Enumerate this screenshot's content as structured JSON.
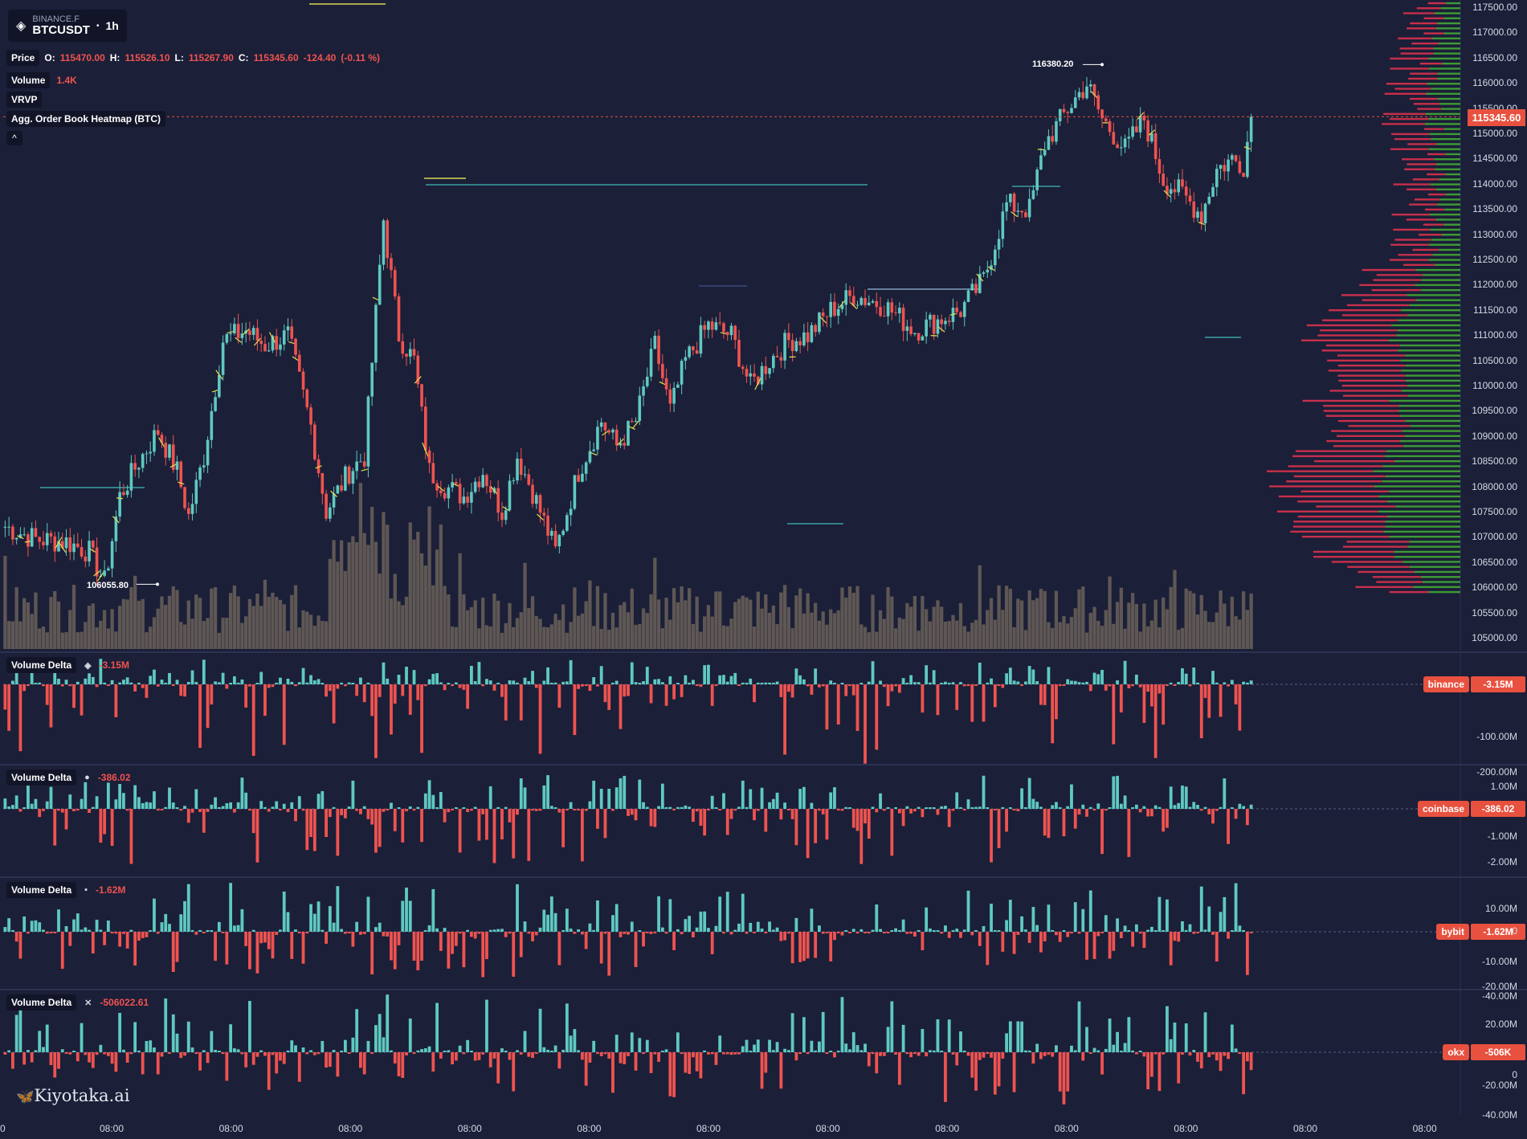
{
  "header": {
    "exchange": "BINANCE.F",
    "symbol": "BTCUSDT",
    "separator": "•",
    "timeframe": "1h"
  },
  "legend": {
    "price_label": "Price",
    "o_label": "O:",
    "o": "115470.00",
    "h_label": "H:",
    "h": "115526.10",
    "l_label": "L:",
    "l": "115267.90",
    "c_label": "C:",
    "c": "115345.60",
    "chg": "-124.40",
    "chg_pct": "(-0.11 %)",
    "volume_label": "Volume",
    "volume": "1.4K",
    "vrvp_label": "VRVP",
    "heatmap_label": "Agg. Order Book Heatmap (BTC)",
    "collapse": "^"
  },
  "price_axis": [
    "117500.00",
    "117000.00",
    "116500.00",
    "116000.00",
    "115500.00",
    "115000.00",
    "114500.00",
    "114000.00",
    "113500.00",
    "113000.00",
    "112500.00",
    "112000.00",
    "111500.00",
    "111000.00",
    "110500.00",
    "110000.00",
    "109500.00",
    "109000.00",
    "108500.00",
    "108000.00",
    "107500.00",
    "107000.00",
    "106500.00",
    "106000.00",
    "105500.00",
    "105000.00"
  ],
  "current_price": "115345.60",
  "markers": {
    "high": "116380.20",
    "low": "106055.80"
  },
  "panes": [
    {
      "title": "Volume Delta",
      "icon": "◈",
      "value": "-3.15M",
      "exchange": "binance",
      "badge": "-3.15M",
      "ticks": [
        "-100.00M",
        "-200.00M"
      ]
    },
    {
      "title": "Volume Delta",
      "icon": "●",
      "value": "-386.02",
      "exchange": "coinbase",
      "badge": "-386.02",
      "ticks": [
        "1.00M",
        "-1.00M",
        "-2.00M"
      ]
    },
    {
      "title": "Volume Delta",
      "icon": "▪",
      "value": "-1.62M",
      "exchange": "bybit",
      "badge": "-1.62M",
      "ticks": [
        "10.00M",
        "0",
        "-10.00M",
        "-20.00M"
      ]
    },
    {
      "title": "Volume Delta",
      "icon": "✕",
      "value": "-506022.61",
      "exchange": "okx",
      "badge": "-506K",
      "ticks": [
        "-40.00M",
        "20.00M",
        "0",
        "-20.00M",
        "-40.00M"
      ]
    }
  ],
  "time_axis": [
    "0",
    "08:00",
    "08:00",
    "08:00",
    "08:00",
    "08:00",
    "08:00",
    "08:00",
    "08:00",
    "08:00",
    "08:00",
    "08:00",
    "08:00"
  ],
  "brand": "Kiyotaka.ai",
  "chart_data": {
    "type": "candlestick",
    "colors": {
      "up": "#5fc9c0",
      "down": "#ef5350",
      "bg": "#1b1f38",
      "volume": "#8c7d68",
      "vp_buy": "#3d9b35",
      "vp_sell": "#c72f4b"
    },
    "price_ylim": [
      104800,
      117600
    ],
    "price_anchors": [
      [
        0,
        107200
      ],
      [
        8,
        106950
      ],
      [
        16,
        106900
      ],
      [
        22,
        106700
      ],
      [
        26,
        106100
      ],
      [
        30,
        107800
      ],
      [
        35,
        108500
      ],
      [
        40,
        109100
      ],
      [
        45,
        108300
      ],
      [
        48,
        107400
      ],
      [
        52,
        108600
      ],
      [
        57,
        110900
      ],
      [
        63,
        111100
      ],
      [
        68,
        110800
      ],
      [
        74,
        111000
      ],
      [
        80,
        109200
      ],
      [
        84,
        107500
      ],
      [
        90,
        108300
      ],
      [
        94,
        108600
      ],
      [
        99,
        113300
      ],
      [
        103,
        111000
      ],
      [
        107,
        110500
      ],
      [
        111,
        108300
      ],
      [
        115,
        108000
      ],
      [
        120,
        107800
      ],
      [
        125,
        108300
      ],
      [
        130,
        107500
      ],
      [
        134,
        108600
      ],
      [
        138,
        107900
      ],
      [
        144,
        106700
      ],
      [
        150,
        108300
      ],
      [
        156,
        109300
      ],
      [
        160,
        108800
      ],
      [
        165,
        109300
      ],
      [
        170,
        110800
      ],
      [
        174,
        109500
      ],
      [
        178,
        110500
      ],
      [
        184,
        111200
      ],
      [
        190,
        111000
      ],
      [
        195,
        110000
      ],
      [
        200,
        110500
      ],
      [
        205,
        110900
      ],
      [
        210,
        111000
      ],
      [
        216,
        111500
      ],
      [
        222,
        111800
      ],
      [
        230,
        111600
      ],
      [
        238,
        111100
      ],
      [
        244,
        111300
      ],
      [
        250,
        111500
      ],
      [
        256,
        112100
      ],
      [
        262,
        113600
      ],
      [
        268,
        113500
      ],
      [
        272,
        114800
      ],
      [
        278,
        115500
      ],
      [
        283,
        116000
      ],
      [
        287,
        115300
      ],
      [
        293,
        114700
      ],
      [
        298,
        115300
      ],
      [
        303,
        114100
      ],
      [
        308,
        113800
      ],
      [
        313,
        113400
      ],
      [
        317,
        114300
      ],
      [
        321,
        114500
      ],
      [
        324,
        114400
      ],
      [
        326,
        115300
      ]
    ],
    "candle_count": 327,
    "high_marker": 116380.2,
    "low_marker": 106055.8,
    "last_close": 115345.6,
    "volume_delta_ylim": {
      "binance": [
        -230,
        30
      ],
      "coinbase": [
        -2.6,
        1.3
      ],
      "bybit": [
        -21,
        12
      ],
      "okx": [
        -44,
        25
      ]
    }
  }
}
